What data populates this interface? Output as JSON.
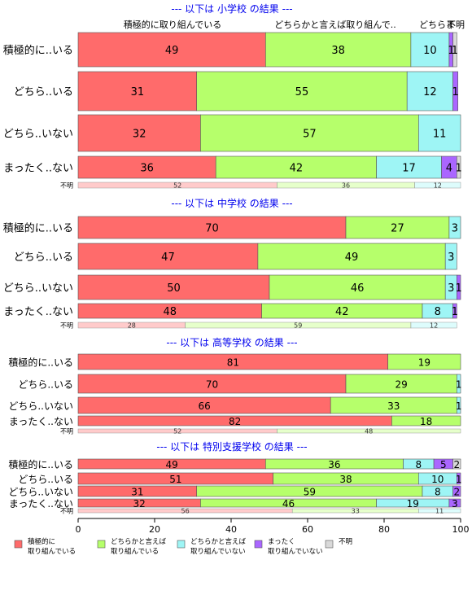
{
  "chart_data": {
    "type": "bar",
    "orientation": "horizontal",
    "stacked": true,
    "column_headers": [
      "積極的に取り組んでいる",
      "どちらかと言えば取り組んで..",
      "どちらま",
      "不明"
    ],
    "xaxis": {
      "ticks": [
        "0",
        "20",
        "40",
        "60",
        "80",
        "100"
      ],
      "xlim": [
        0,
        100
      ]
    },
    "series_colors": [
      "#ff6b6b",
      "#b6ff6b",
      "#9ef5f5",
      "#aa66ff",
      "#d9d9d9"
    ],
    "legend": {
      "placement": "bottom",
      "items": [
        {
          "line1": "積極的に",
          "line2": "取り組んでいる"
        },
        {
          "line1": "どちらかと言えば",
          "line2": "取り組んでいる"
        },
        {
          "line1": "どちらかと言えば",
          "line2": "取り組んでいない"
        },
        {
          "line1": "まったく",
          "line2": "取り組んでいない"
        },
        {
          "line1": "不明",
          "line2": ""
        }
      ]
    },
    "panels": [
      {
        "title": "--- 以下は 小学校 の結果 ---",
        "rows": [
          {
            "label": "積極的に..いる",
            "values": [
              49,
              38,
              10,
              1,
              1
            ],
            "labels": [
              "49",
              "38",
              "10",
              "1",
              "1"
            ]
          },
          {
            "label": "どちら..いる",
            "values": [
              31,
              55,
              12,
              1.3,
              0
            ],
            "labels": [
              "31",
              "55",
              "12",
              "1",
              ""
            ]
          },
          {
            "label": "どちら..いない",
            "values": [
              32,
              57,
              11,
              0.3,
              0
            ],
            "labels": [
              "32",
              "57",
              "11",
              "",
              ""
            ]
          },
          {
            "label": "まったく..ない",
            "values": [
              36,
              42,
              17,
              4,
              1
            ],
            "labels": [
              "36",
              "42",
              "17",
              "4",
              "1"
            ]
          }
        ],
        "unknown": {
          "label": "不明",
          "values": [
            52,
            36,
            12,
            0,
            0
          ],
          "labels": [
            "52",
            "36",
            "12",
            "",
            ""
          ]
        }
      },
      {
        "title": "--- 以下は 中学校 の結果 ---",
        "rows": [
          {
            "label": "積極的に..いる",
            "values": [
              70,
              27,
              3,
              0,
              0
            ],
            "labels": [
              "70",
              "27",
              "3",
              "",
              ""
            ]
          },
          {
            "label": "どちら..いる",
            "values": [
              47,
              49,
              3,
              0,
              0
            ],
            "labels": [
              "47",
              "49",
              "3",
              "",
              ""
            ]
          },
          {
            "label": "どちら..いない",
            "values": [
              50,
              46,
              3,
              1,
              0
            ],
            "labels": [
              "50",
              "46",
              "3",
              "1",
              ""
            ]
          },
          {
            "label": "まったく..ない",
            "values": [
              48,
              42,
              8,
              1,
              0
            ],
            "labels": [
              "48",
              "42",
              "8",
              "1",
              ""
            ]
          }
        ],
        "unknown": {
          "label": "不明",
          "values": [
            28,
            59,
            12,
            0,
            0
          ],
          "labels": [
            "28",
            "59",
            "12",
            "",
            ""
          ]
        }
      },
      {
        "title": "--- 以下は 高等学校 の結果 ---",
        "rows": [
          {
            "label": "積極的に..いる",
            "values": [
              81,
              19,
              0,
              0,
              0
            ],
            "labels": [
              "81",
              "19",
              "",
              "",
              ""
            ]
          },
          {
            "label": "どちら..いる",
            "values": [
              70,
              29,
              1,
              0,
              0
            ],
            "labels": [
              "70",
              "29",
              "1",
              "",
              ""
            ]
          },
          {
            "label": "どちら..いない",
            "values": [
              66,
              33,
              1,
              0,
              0
            ],
            "labels": [
              "66",
              "33",
              "1",
              "",
              ""
            ]
          },
          {
            "label": "まったく..ない",
            "values": [
              82,
              18,
              0,
              0,
              0
            ],
            "labels": [
              "82",
              "18",
              "",
              "",
              ""
            ]
          }
        ],
        "unknown": {
          "label": "不明",
          "values": [
            52,
            48,
            0,
            0,
            0
          ],
          "labels": [
            "52",
            "48",
            "",
            "",
            ""
          ]
        }
      },
      {
        "title": "--- 以下は 特別支援学校 の結果 ---",
        "rows": [
          {
            "label": "積極的に..いる",
            "values": [
              49,
              36,
              8,
              5,
              2
            ],
            "labels": [
              "49",
              "36",
              "8",
              "5",
              "2"
            ]
          },
          {
            "label": "どちら..いる",
            "values": [
              51,
              38,
              10,
              1,
              0
            ],
            "labels": [
              "51",
              "38",
              "10",
              "1",
              ""
            ]
          },
          {
            "label": "どちら..いない",
            "values": [
              31,
              59,
              8,
              2,
              0
            ],
            "labels": [
              "31",
              "59",
              "8",
              "2",
              ""
            ]
          },
          {
            "label": "まったく..ない",
            "values": [
              32,
              46,
              19,
              3,
              0
            ],
            "labels": [
              "32",
              "46",
              "19",
              "3",
              ""
            ]
          }
        ],
        "unknown": {
          "label": "不明",
          "values": [
            56,
            33,
            11,
            0,
            0
          ],
          "labels": [
            "56",
            "33",
            "11",
            "",
            ""
          ]
        }
      }
    ]
  }
}
